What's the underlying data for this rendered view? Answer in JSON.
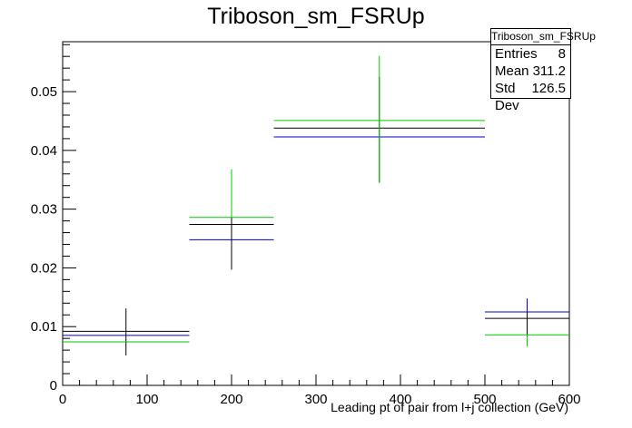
{
  "chart_data": {
    "type": "histogram",
    "title": "Triboson_sm_FSRUp",
    "xlabel": "Leading pt of pair from l+j collection (GeV)",
    "ylabel": "",
    "xlim": [
      0,
      600
    ],
    "ylim": [
      0,
      0.0585
    ],
    "x_ticks": [
      0,
      100,
      200,
      300,
      400,
      500,
      600
    ],
    "y_ticks": [
      0,
      0.01,
      0.02,
      0.03,
      0.04,
      0.05
    ],
    "x_tick_labels": [
      "0",
      "100",
      "200",
      "300",
      "400",
      "500",
      "600"
    ],
    "y_tick_labels": [
      "0",
      "0.01",
      "0.02",
      "0.03",
      "0.04",
      "0.05"
    ],
    "grid": false,
    "bins": [
      {
        "low": 0,
        "high": 150,
        "center": 75
      },
      {
        "low": 150,
        "high": 250,
        "center": 200
      },
      {
        "low": 250,
        "high": 500,
        "center": 375
      },
      {
        "low": 500,
        "high": 600,
        "center": 550
      }
    ],
    "series": [
      {
        "color": "#000000",
        "values": [
          0.0092,
          0.0274,
          0.0438,
          0.0114
        ],
        "err_low": [
          0.0051,
          0.0197,
          0.0345,
          0.0074
        ],
        "err_high": [
          0.0131,
          0.0334,
          0.0525,
          0.0131
        ]
      },
      {
        "color": "#0000cc",
        "values": [
          0.0085,
          0.0248,
          0.0423,
          0.0125
        ],
        "err_low": null,
        "err_high": [
          null,
          null,
          null,
          0.0148
        ]
      },
      {
        "color": "#00cc00",
        "values": [
          0.0074,
          0.0286,
          0.0451,
          0.0086
        ],
        "err_low": [
          null,
          null,
          0.0345,
          0.0066
        ],
        "err_high": [
          null,
          0.0368,
          0.0561,
          null
        ]
      }
    ],
    "stats": {
      "title": "Triboson_sm_FSRUp",
      "rows": [
        {
          "label": "Entries",
          "value": "8"
        },
        {
          "label": "Mean",
          "value": "311.2"
        },
        {
          "label": "Std Dev",
          "value": "126.5"
        }
      ]
    }
  }
}
